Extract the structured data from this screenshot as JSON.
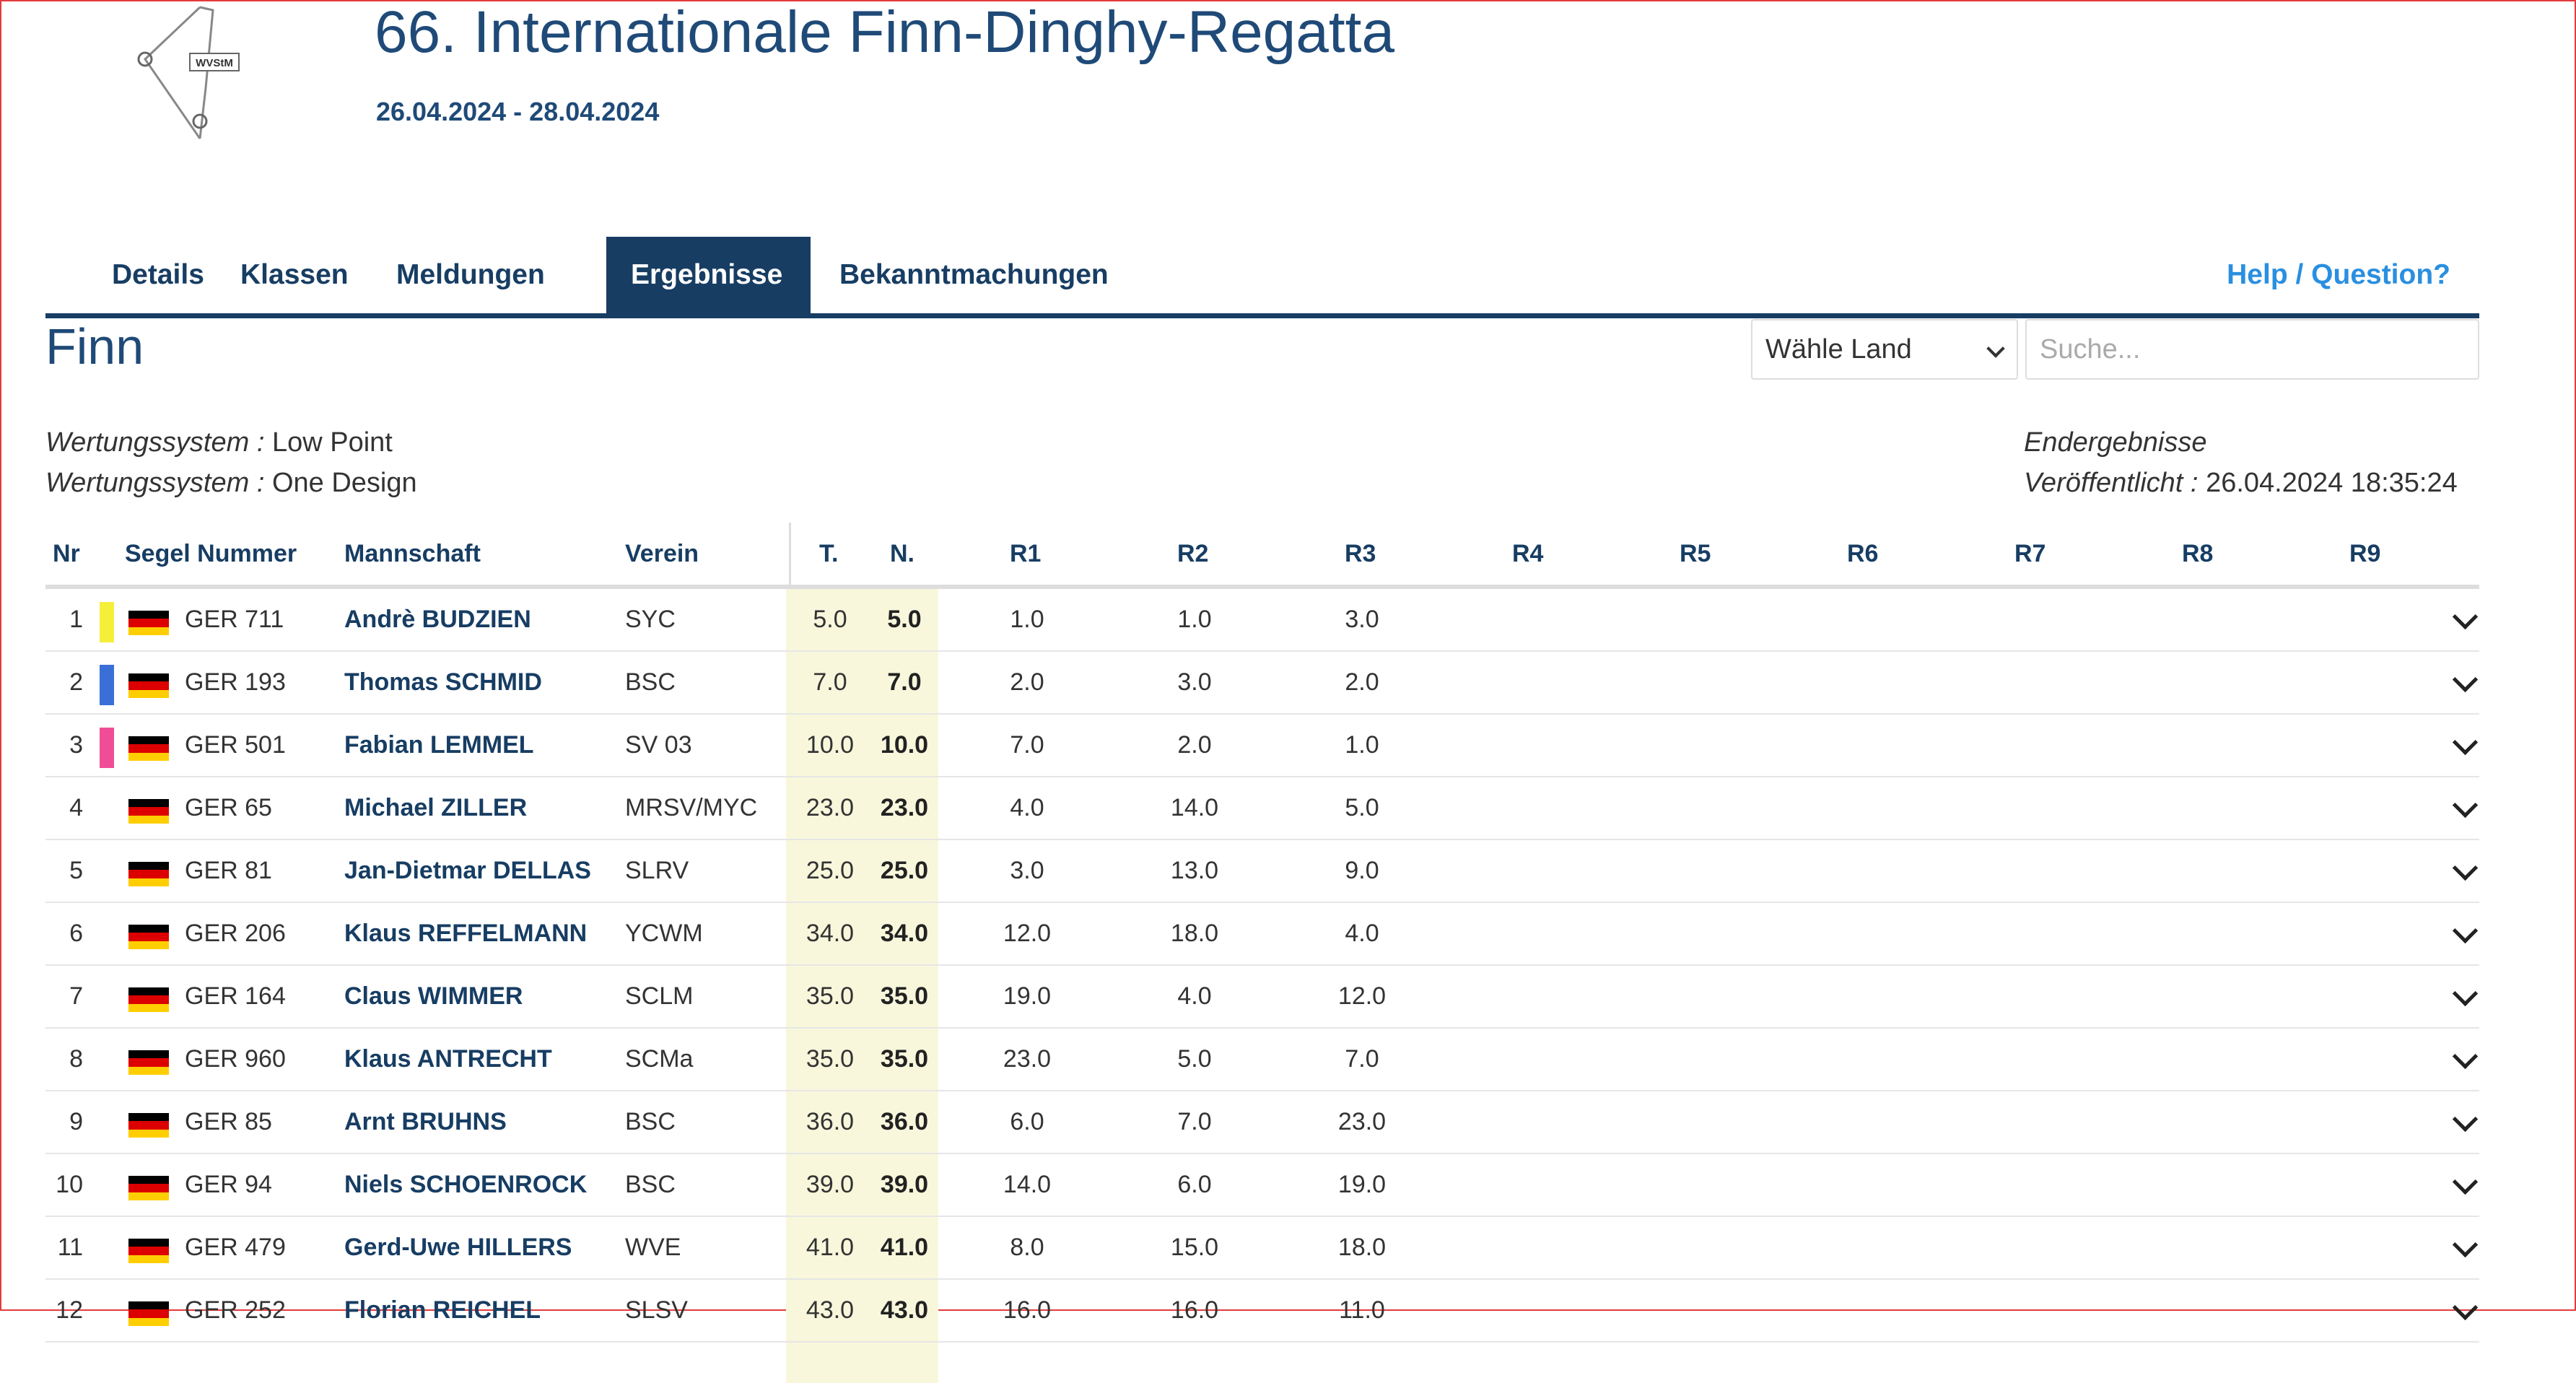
{
  "header": {
    "logo_text": "WVStM",
    "title": "66. Internationale Finn-Dinghy-Regatta",
    "dates": "26.04.2024 - 28.04.2024"
  },
  "nav": {
    "tabs": [
      {
        "label": "Details"
      },
      {
        "label": "Klassen"
      },
      {
        "label": "Meldungen"
      },
      {
        "label": "Ergebnisse",
        "active": true
      },
      {
        "label": "Bekanntmachungen"
      }
    ],
    "help": "Help / Question?"
  },
  "class_name": "Finn",
  "filters": {
    "country_selected": "Wähle Land",
    "search_placeholder": "Suche..."
  },
  "info": {
    "scoring_label": "Wertungssystem :",
    "scoring_value": "Low Point",
    "design_label": "Wertungssystem :",
    "design_value": "One Design",
    "status": "Endergebnisse",
    "published_label": "Veröffentlicht :",
    "published_value": "26.04.2024 18:35:24"
  },
  "table": {
    "headers": {
      "nr": "Nr",
      "sail": "Segel Nummer",
      "crew": "Mannschaft",
      "club": "Verein",
      "total": "T.",
      "net": "N.",
      "races": [
        "R1",
        "R2",
        "R3",
        "R4",
        "R5",
        "R6",
        "R7",
        "R8",
        "R9"
      ]
    },
    "rows": [
      {
        "nr": "1",
        "marker": "#f5ef3a",
        "sail": "GER 711",
        "name": "Andrè BUDZIEN",
        "club": "SYC",
        "total": "5.0",
        "net": "5.0",
        "r": [
          "1.0",
          "1.0",
          "3.0"
        ]
      },
      {
        "nr": "2",
        "marker": "#3a6fd8",
        "sail": "GER 193",
        "name": "Thomas SCHMID",
        "club": "BSC",
        "total": "7.0",
        "net": "7.0",
        "r": [
          "2.0",
          "3.0",
          "2.0"
        ]
      },
      {
        "nr": "3",
        "marker": "#f04d96",
        "sail": "GER 501",
        "name": "Fabian LEMMEL",
        "club": "SV 03",
        "total": "10.0",
        "net": "10.0",
        "r": [
          "7.0",
          "2.0",
          "1.0"
        ]
      },
      {
        "nr": "4",
        "marker": "",
        "sail": "GER 65",
        "name": "Michael ZILLER",
        "club": "MRSV/MYC",
        "total": "23.0",
        "net": "23.0",
        "r": [
          "4.0",
          "14.0",
          "5.0"
        ]
      },
      {
        "nr": "5",
        "marker": "",
        "sail": "GER 81",
        "name": "Jan-Dietmar DELLAS",
        "club": "SLRV",
        "total": "25.0",
        "net": "25.0",
        "r": [
          "3.0",
          "13.0",
          "9.0"
        ]
      },
      {
        "nr": "6",
        "marker": "",
        "sail": "GER 206",
        "name": "Klaus REFFELMANN",
        "club": "YCWM",
        "total": "34.0",
        "net": "34.0",
        "r": [
          "12.0",
          "18.0",
          "4.0"
        ]
      },
      {
        "nr": "7",
        "marker": "",
        "sail": "GER 164",
        "name": "Claus WIMMER",
        "club": "SCLM",
        "total": "35.0",
        "net": "35.0",
        "r": [
          "19.0",
          "4.0",
          "12.0"
        ]
      },
      {
        "nr": "8",
        "marker": "",
        "sail": "GER 960",
        "name": "Klaus ANTRECHT",
        "club": "SCMa",
        "total": "35.0",
        "net": "35.0",
        "r": [
          "23.0",
          "5.0",
          "7.0"
        ]
      },
      {
        "nr": "9",
        "marker": "",
        "sail": "GER 85",
        "name": "Arnt BRUHNS",
        "club": "BSC",
        "total": "36.0",
        "net": "36.0",
        "r": [
          "6.0",
          "7.0",
          "23.0"
        ]
      },
      {
        "nr": "10",
        "marker": "",
        "sail": "GER 94",
        "name": "Niels SCHOENROCK",
        "club": "BSC",
        "total": "39.0",
        "net": "39.0",
        "r": [
          "14.0",
          "6.0",
          "19.0"
        ]
      },
      {
        "nr": "11",
        "marker": "",
        "sail": "GER 479",
        "name": "Gerd-Uwe HILLERS",
        "club": "WVE",
        "total": "41.0",
        "net": "41.0",
        "r": [
          "8.0",
          "15.0",
          "18.0"
        ]
      },
      {
        "nr": "12",
        "marker": "",
        "sail": "GER 252",
        "name": "Florian REICHEL",
        "club": "SLSV",
        "total": "43.0",
        "net": "43.0",
        "r": [
          "16.0",
          "16.0",
          "11.0"
        ]
      }
    ]
  }
}
